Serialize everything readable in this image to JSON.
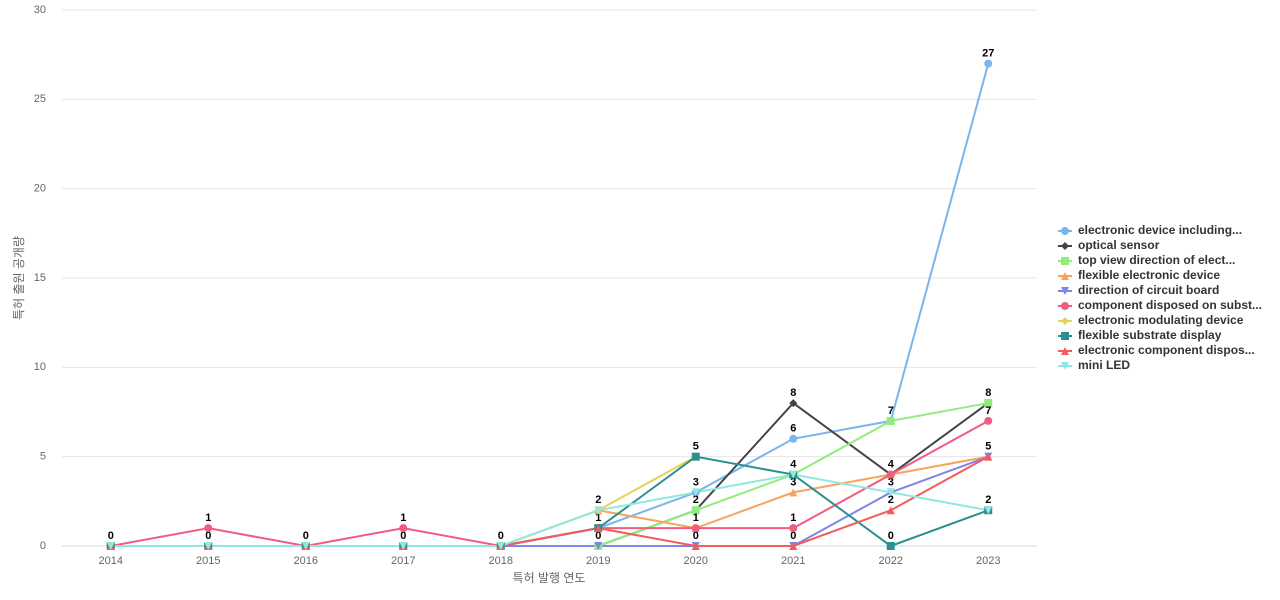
{
  "chart_data": {
    "type": "line",
    "x_label": "특허 발행 연도",
    "y_label": "특허 출원 공개량",
    "categories": [
      "2014",
      "2015",
      "2016",
      "2017",
      "2018",
      "2019",
      "2020",
      "2021",
      "2022",
      "2023"
    ],
    "ylim": [
      0,
      30
    ],
    "yticks": [
      0,
      5,
      10,
      15,
      20,
      25,
      30
    ],
    "grid": true,
    "series": [
      {
        "name": "electronic device including...",
        "color": "#7cb5ec",
        "marker": "circle",
        "values": [
          0,
          0,
          0,
          0,
          0,
          1,
          3,
          6,
          7,
          27
        ]
      },
      {
        "name": "optical sensor",
        "color": "#434348",
        "marker": "diamond",
        "values": [
          0,
          0,
          0,
          0,
          0,
          0,
          2,
          8,
          4,
          8
        ]
      },
      {
        "name": "top view direction of elect...",
        "color": "#90ed7d",
        "marker": "square",
        "values": [
          0,
          0,
          0,
          0,
          0,
          0,
          2,
          4,
          7,
          8
        ]
      },
      {
        "name": "flexible electronic device",
        "color": "#f7a35c",
        "marker": "triangle",
        "values": [
          0,
          0,
          0,
          0,
          0,
          2,
          1,
          3,
          4,
          5
        ]
      },
      {
        "name": "direction of circuit board",
        "color": "#8085e9",
        "marker": "triangle-down",
        "values": [
          0,
          0,
          0,
          0,
          0,
          0,
          0,
          0,
          3,
          5
        ]
      },
      {
        "name": "component disposed on subst...",
        "color": "#f15c80",
        "marker": "circle",
        "values": [
          0,
          1,
          0,
          1,
          0,
          1,
          1,
          1,
          4,
          7
        ]
      },
      {
        "name": "electronic modulating device",
        "color": "#e4d354",
        "marker": "diamond",
        "values": [
          0,
          0,
          0,
          0,
          0,
          2,
          5,
          null,
          null,
          null
        ]
      },
      {
        "name": "flexible substrate display",
        "color": "#2b908f",
        "marker": "square",
        "values": [
          0,
          0,
          0,
          0,
          0,
          1,
          5,
          4,
          0,
          2
        ]
      },
      {
        "name": "electronic component dispos...",
        "color": "#f45b5b",
        "marker": "triangle",
        "values": [
          0,
          0,
          0,
          0,
          0,
          1,
          0,
          0,
          2,
          5
        ]
      },
      {
        "name": "mini LED",
        "color": "#91e8e1",
        "marker": "triangle-down",
        "values": [
          0,
          0,
          0,
          0,
          0,
          2,
          3,
          4,
          3,
          2
        ]
      }
    ]
  }
}
